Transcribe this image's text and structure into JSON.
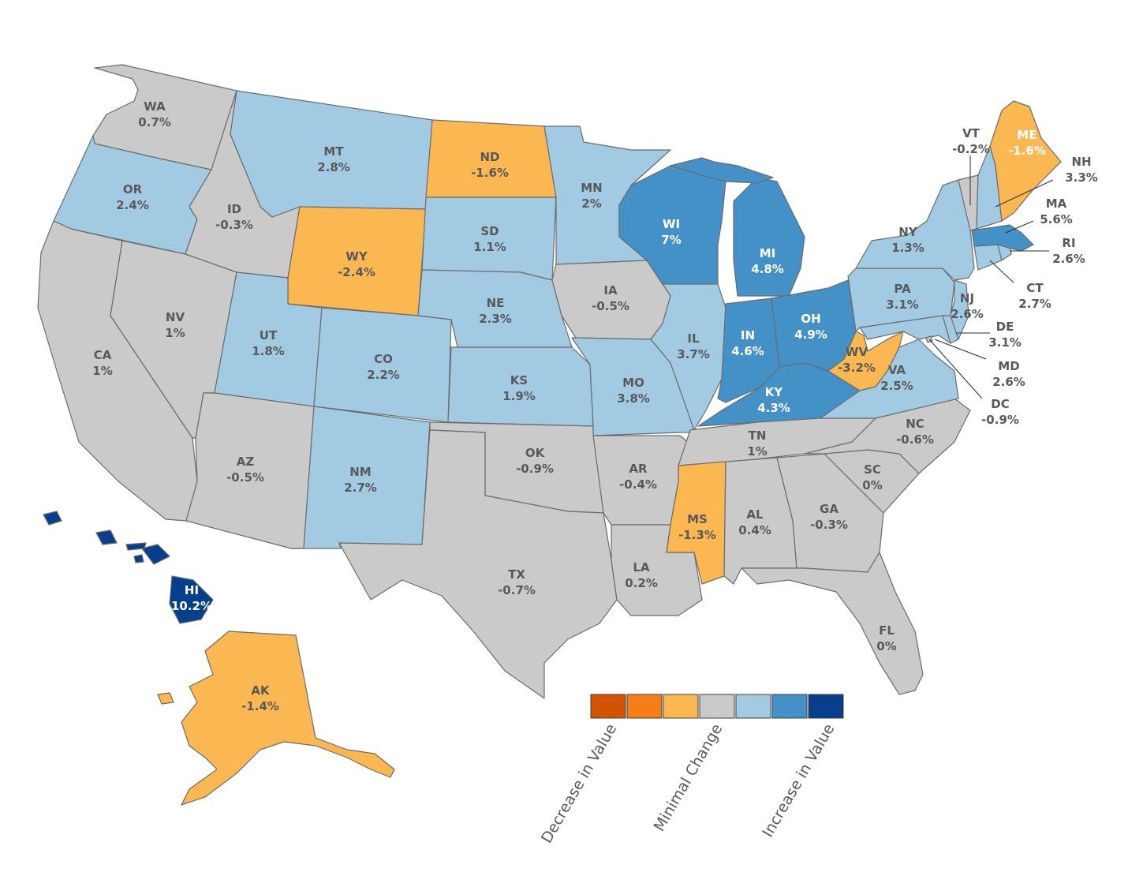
{
  "colors": {
    "decrease_strong": "#d35400",
    "decrease_medium": "#f57f17",
    "decrease_light": "#fbb752",
    "minimal": "#cacaca",
    "increase_light": "#a2cbe3",
    "increase_medium": "#4491c8",
    "increase_strong": "#073f8d",
    "border": "#6b6b6b",
    "label_text": "#595959"
  },
  "legend": {
    "labels": [
      "Decrease in Value",
      "Minimal Change",
      "Increase in Value"
    ],
    "swatches": [
      "#d35400",
      "#f57f17",
      "#fbb752",
      "#cacaca",
      "#a2cbe3",
      "#4491c8",
      "#073f8d"
    ]
  },
  "states": {
    "WA": {
      "abbr": "WA",
      "value": "0.7%",
      "category": "minimal"
    },
    "OR": {
      "abbr": "OR",
      "value": "2.4%",
      "category": "increase_light"
    },
    "CA": {
      "abbr": "CA",
      "value": "1%",
      "category": "minimal"
    },
    "ID": {
      "abbr": "ID",
      "value": "-0.3%",
      "category": "minimal"
    },
    "NV": {
      "abbr": "NV",
      "value": "1%",
      "category": "minimal"
    },
    "MT": {
      "abbr": "MT",
      "value": "2.8%",
      "category": "increase_light"
    },
    "WY": {
      "abbr": "WY",
      "value": "-2.4%",
      "category": "decrease_light"
    },
    "UT": {
      "abbr": "UT",
      "value": "1.8%",
      "category": "increase_light"
    },
    "AZ": {
      "abbr": "AZ",
      "value": "-0.5%",
      "category": "minimal"
    },
    "CO": {
      "abbr": "CO",
      "value": "2.2%",
      "category": "increase_light"
    },
    "NM": {
      "abbr": "NM",
      "value": "2.7%",
      "category": "increase_light"
    },
    "ND": {
      "abbr": "ND",
      "value": "-1.6%",
      "category": "decrease_light"
    },
    "SD": {
      "abbr": "SD",
      "value": "1.1%",
      "category": "increase_light"
    },
    "NE": {
      "abbr": "NE",
      "value": "2.3%",
      "category": "increase_light"
    },
    "KS": {
      "abbr": "KS",
      "value": "1.9%",
      "category": "increase_light"
    },
    "OK": {
      "abbr": "OK",
      "value": "-0.9%",
      "category": "minimal"
    },
    "TX": {
      "abbr": "TX",
      "value": "-0.7%",
      "category": "minimal"
    },
    "MN": {
      "abbr": "MN",
      "value": "2%",
      "category": "increase_light"
    },
    "IA": {
      "abbr": "IA",
      "value": "-0.5%",
      "category": "minimal"
    },
    "MO": {
      "abbr": "MO",
      "value": "3.8%",
      "category": "increase_light"
    },
    "AR": {
      "abbr": "AR",
      "value": "-0.4%",
      "category": "minimal"
    },
    "LA": {
      "abbr": "LA",
      "value": "0.2%",
      "category": "minimal"
    },
    "WI": {
      "abbr": "WI",
      "value": "7%",
      "category": "increase_medium"
    },
    "IL": {
      "abbr": "IL",
      "value": "3.7%",
      "category": "increase_light"
    },
    "MI": {
      "abbr": "MI",
      "value": "4.8%",
      "category": "increase_medium"
    },
    "IN": {
      "abbr": "IN",
      "value": "4.6%",
      "category": "increase_medium"
    },
    "OH": {
      "abbr": "OH",
      "value": "4.9%",
      "category": "increase_medium"
    },
    "KY": {
      "abbr": "KY",
      "value": "4.3%",
      "category": "increase_medium"
    },
    "TN": {
      "abbr": "TN",
      "value": "1%",
      "category": "minimal"
    },
    "MS": {
      "abbr": "MS",
      "value": "-1.3%",
      "category": "decrease_light"
    },
    "AL": {
      "abbr": "AL",
      "value": "0.4%",
      "category": "minimal"
    },
    "GA": {
      "abbr": "GA",
      "value": "-0.3%",
      "category": "minimal"
    },
    "FL": {
      "abbr": "FL",
      "value": "0%",
      "category": "minimal"
    },
    "SC": {
      "abbr": "SC",
      "value": "0%",
      "category": "minimal"
    },
    "NC": {
      "abbr": "NC",
      "value": "-0.6%",
      "category": "minimal"
    },
    "VA": {
      "abbr": "VA",
      "value": "2.5%",
      "category": "increase_light"
    },
    "WV": {
      "abbr": "WV",
      "value": "-3.2%",
      "category": "decrease_light"
    },
    "PA": {
      "abbr": "PA",
      "value": "3.1%",
      "category": "increase_light"
    },
    "NY": {
      "abbr": "NY",
      "value": "1.3%",
      "category": "increase_light"
    },
    "VT": {
      "abbr": "VT",
      "value": "-0.2%",
      "category": "minimal"
    },
    "NH": {
      "abbr": "NH",
      "value": "3.3%",
      "category": "increase_light"
    },
    "ME": {
      "abbr": "ME",
      "value": "-1.6%",
      "category": "decrease_light"
    },
    "MA": {
      "abbr": "MA",
      "value": "5.6%",
      "category": "increase_medium"
    },
    "RI": {
      "abbr": "RI",
      "value": "2.6%",
      "category": "increase_light"
    },
    "CT": {
      "abbr": "CT",
      "value": "2.7%",
      "category": "increase_light"
    },
    "NJ": {
      "abbr": "NJ",
      "value": "2.6%",
      "category": "increase_light"
    },
    "DE": {
      "abbr": "DE",
      "value": "3.1%",
      "category": "increase_light"
    },
    "MD": {
      "abbr": "MD",
      "value": "2.6%",
      "category": "increase_light"
    },
    "DC": {
      "abbr": "DC",
      "value": "-0.9%",
      "category": "minimal"
    },
    "AK": {
      "abbr": "AK",
      "value": "-1.4%",
      "category": "decrease_light"
    },
    "HI": {
      "abbr": "HI",
      "value": "10.2%",
      "category": "increase_strong"
    }
  }
}
